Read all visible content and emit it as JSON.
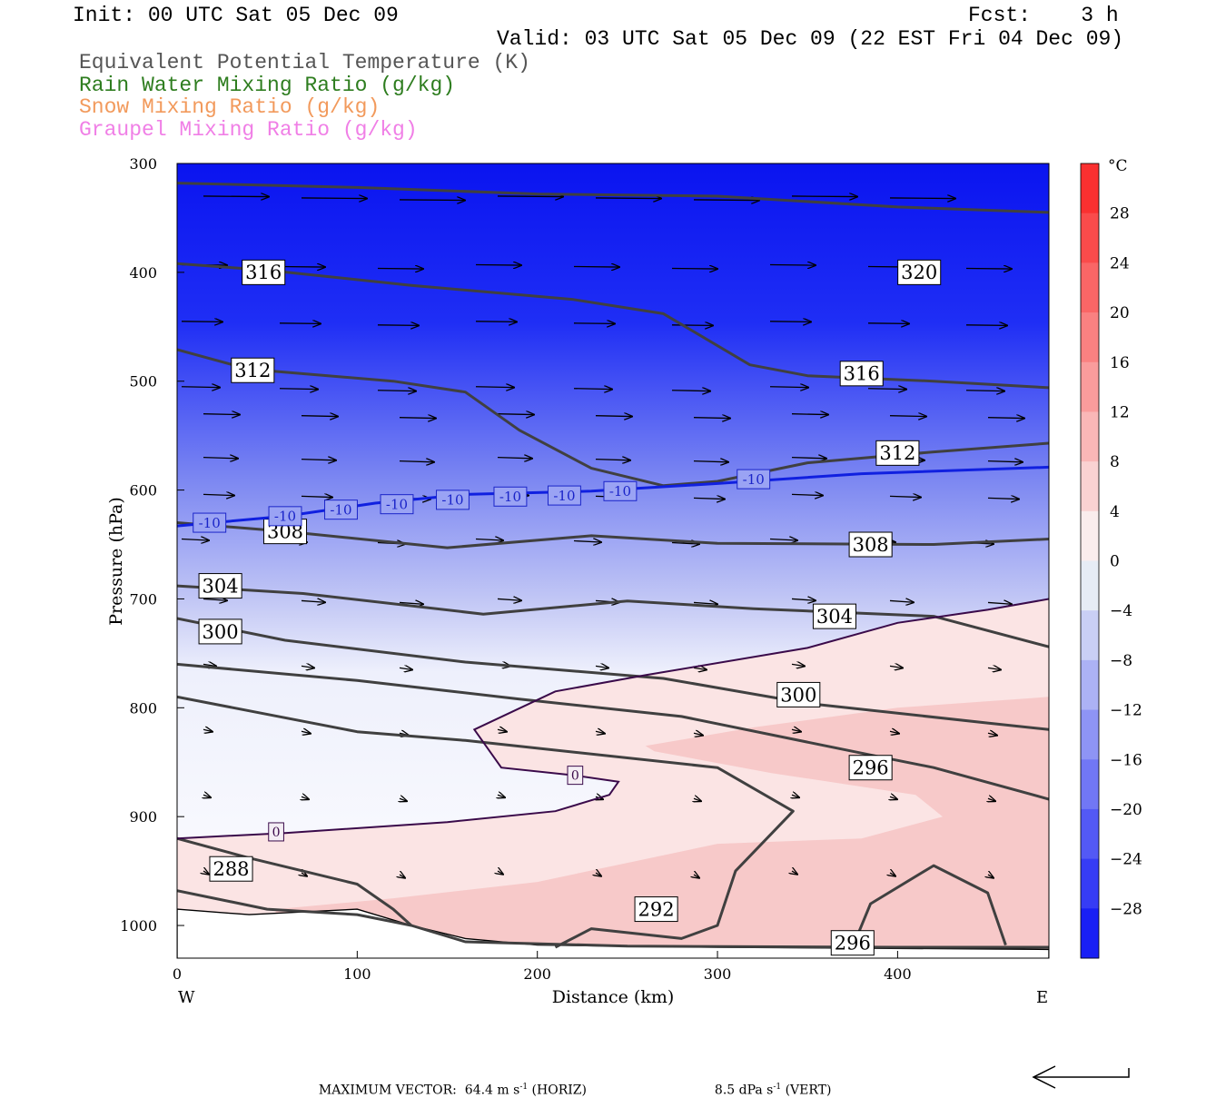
{
  "header": {
    "init": "Init: 00 UTC Sat 05 Dec 09",
    "fcst": "Fcst:    3 h",
    "valid": "Valid: 03 UTC Sat 05 Dec 09 (22 EST Fri 04 Dec 09)",
    "fields": [
      {
        "label": "Equivalent Potential Temperature (K)",
        "color": "#555555"
      },
      {
        "label": "Rain Water Mixing Ratio (g/kg)",
        "color": "#2e7d1f"
      },
      {
        "label": "Snow Mixing Ratio (g/kg)",
        "color": "#f29a5c"
      },
      {
        "label": "Graupel Mixing Ratio (g/kg)",
        "color": "#f07fe6"
      }
    ]
  },
  "chart_data": {
    "type": "cross-section",
    "xlabel": "Distance (km)",
    "ylabel": "Pressure (hPa)",
    "xlim": [
      0,
      484
    ],
    "ylim": [
      1030,
      300
    ],
    "x_ticks": [
      0,
      100,
      200,
      300,
      400
    ],
    "y_ticks": [
      300,
      400,
      500,
      600,
      700,
      800,
      900,
      1000
    ],
    "west_label": "W",
    "east_label": "E",
    "temperature_field": {
      "unit": "°C",
      "colorbar_levels": [
        "28",
        "24",
        "20",
        "16",
        "12",
        "8",
        "4",
        "0",
        "-4",
        "-8",
        "-12",
        "-16",
        "-20",
        "-24",
        "-28"
      ],
      "colorbar_min": -32,
      "colorbar_max": 32,
      "level_step": 4
    },
    "theta_e_contours": [
      {
        "label": "320",
        "points": [
          [
            0,
            318
          ],
          [
            100,
            322
          ],
          [
            200,
            328
          ],
          [
            300,
            330
          ],
          [
            400,
            340
          ],
          [
            484,
            345
          ]
        ],
        "label_at": [
          412,
          400
        ]
      },
      {
        "label": "316",
        "points": [
          [
            0,
            392
          ],
          [
            50,
            398
          ],
          [
            130,
            412
          ],
          [
            220,
            425
          ],
          [
            270,
            438
          ],
          [
            318,
            485
          ],
          [
            350,
            495
          ],
          [
            420,
            500
          ],
          [
            484,
            506
          ]
        ],
        "label_at": [
          48,
          400
        ],
        "label2_at": [
          380,
          493
        ]
      },
      {
        "label": "312",
        "points": [
          [
            0,
            471
          ],
          [
            40,
            489
          ],
          [
            120,
            500
          ],
          [
            160,
            510
          ],
          [
            190,
            545
          ],
          [
            230,
            580
          ],
          [
            270,
            596
          ],
          [
            300,
            592
          ],
          [
            350,
            575
          ],
          [
            420,
            565
          ],
          [
            484,
            557
          ]
        ],
        "label_at": [
          42,
          490
        ],
        "label2_at": [
          400,
          566
        ]
      },
      {
        "label": "308",
        "points": [
          [
            0,
            630
          ],
          [
            60,
            638
          ],
          [
            150,
            653
          ],
          [
            230,
            642
          ],
          [
            300,
            649
          ],
          [
            420,
            650
          ],
          [
            484,
            645
          ]
        ],
        "label_at": [
          60,
          638
        ],
        "label2_at": [
          385,
          650
        ]
      },
      {
        "label": "304",
        "points": [
          [
            0,
            688
          ],
          [
            70,
            695
          ],
          [
            170,
            714
          ],
          [
            250,
            702
          ],
          [
            320,
            709
          ],
          [
            420,
            716
          ],
          [
            484,
            744
          ]
        ],
        "label_at": [
          24,
          688
        ],
        "label2_at": [
          365,
          716
        ]
      },
      {
        "label": "300",
        "points": [
          [
            0,
            718
          ],
          [
            60,
            738
          ],
          [
            160,
            758
          ],
          [
            270,
            773
          ],
          [
            350,
            796
          ],
          [
            450,
            814
          ],
          [
            484,
            820
          ]
        ],
        "label_at": [
          24,
          730
        ],
        "label2_at": [
          345,
          788
        ]
      },
      {
        "label": "296",
        "points": [
          [
            0,
            760
          ],
          [
            100,
            775
          ],
          [
            190,
            792
          ],
          [
            280,
            808
          ],
          [
            390,
            845
          ],
          [
            420,
            855
          ],
          [
            484,
            884
          ]
        ],
        "label_at": [
          385,
          855
        ]
      },
      {
        "label": "292",
        "points": [
          [
            0,
            790
          ],
          [
            100,
            822
          ],
          [
            160,
            830
          ],
          [
            300,
            855
          ],
          [
            342,
            895
          ],
          [
            310,
            950
          ],
          [
            300,
            1000
          ],
          [
            280,
            1012
          ],
          [
            230,
            1003
          ],
          [
            210,
            1020
          ]
        ],
        "label_at": [
          266,
          985
        ]
      },
      {
        "label": "296b",
        "points": [
          [
            375,
            1020
          ],
          [
            385,
            980
          ],
          [
            420,
            945
          ],
          [
            450,
            970
          ],
          [
            460,
            1018
          ]
        ],
        "label_at": [
          375,
          1016
        ]
      },
      {
        "label": "288",
        "points": [
          [
            0,
            920
          ],
          [
            40,
            938
          ],
          [
            100,
            962
          ],
          [
            120,
            985
          ],
          [
            130,
            1000
          ]
        ],
        "label_at": [
          30,
          948
        ]
      },
      {
        "label": "",
        "points": [
          [
            0,
            968
          ],
          [
            50,
            985
          ],
          [
            100,
            990
          ],
          [
            130,
            1000
          ],
          [
            160,
            1015
          ],
          [
            250,
            1019
          ],
          [
            400,
            1020
          ],
          [
            484,
            1020
          ]
        ]
      }
    ],
    "freezing_contours": [
      {
        "label": "0",
        "points": [
          [
            0,
            920
          ],
          [
            60,
            915
          ],
          [
            150,
            905
          ],
          [
            210,
            895
          ],
          [
            240,
            880
          ],
          [
            245,
            868
          ],
          [
            220,
            862
          ],
          [
            180,
            855
          ],
          [
            165,
            820
          ],
          [
            210,
            785
          ],
          [
            260,
            770
          ],
          [
            350,
            745
          ],
          [
            400,
            722
          ],
          [
            450,
            710
          ],
          [
            484,
            700
          ]
        ],
        "label_at": [
          221,
          862
        ],
        "label2_at": [
          55,
          914
        ]
      },
      {
        "label": "-10",
        "points": [
          [
            0,
            633
          ],
          [
            60,
            624
          ],
          [
            110,
            612
          ],
          [
            160,
            604
          ],
          [
            230,
            601
          ],
          [
            300,
            594
          ],
          [
            380,
            585
          ],
          [
            484,
            579
          ]
        ],
        "label_points": [
          [
            18,
            630
          ],
          [
            60,
            624
          ],
          [
            91,
            618
          ],
          [
            122,
            613
          ],
          [
            153,
            609
          ],
          [
            185,
            606
          ],
          [
            215,
            605
          ],
          [
            246,
            601
          ],
          [
            320,
            590
          ]
        ]
      }
    ],
    "wind_vectors_present": true,
    "terrain_surface": [
      [
        0,
        985
      ],
      [
        40,
        990
      ],
      [
        100,
        985
      ],
      [
        130,
        1000
      ],
      [
        160,
        1012
      ],
      [
        200,
        1018
      ],
      [
        300,
        1020
      ],
      [
        484,
        1022
      ]
    ]
  },
  "footer": {
    "max_vector": "MAXIMUM VECTOR:  64.4 m s",
    "sup1": "-1",
    "horiz": " (HORIZ)",
    "vert_val": "8.5 dPa s",
    "sup2": "-1",
    "vert": " (VERT)"
  }
}
